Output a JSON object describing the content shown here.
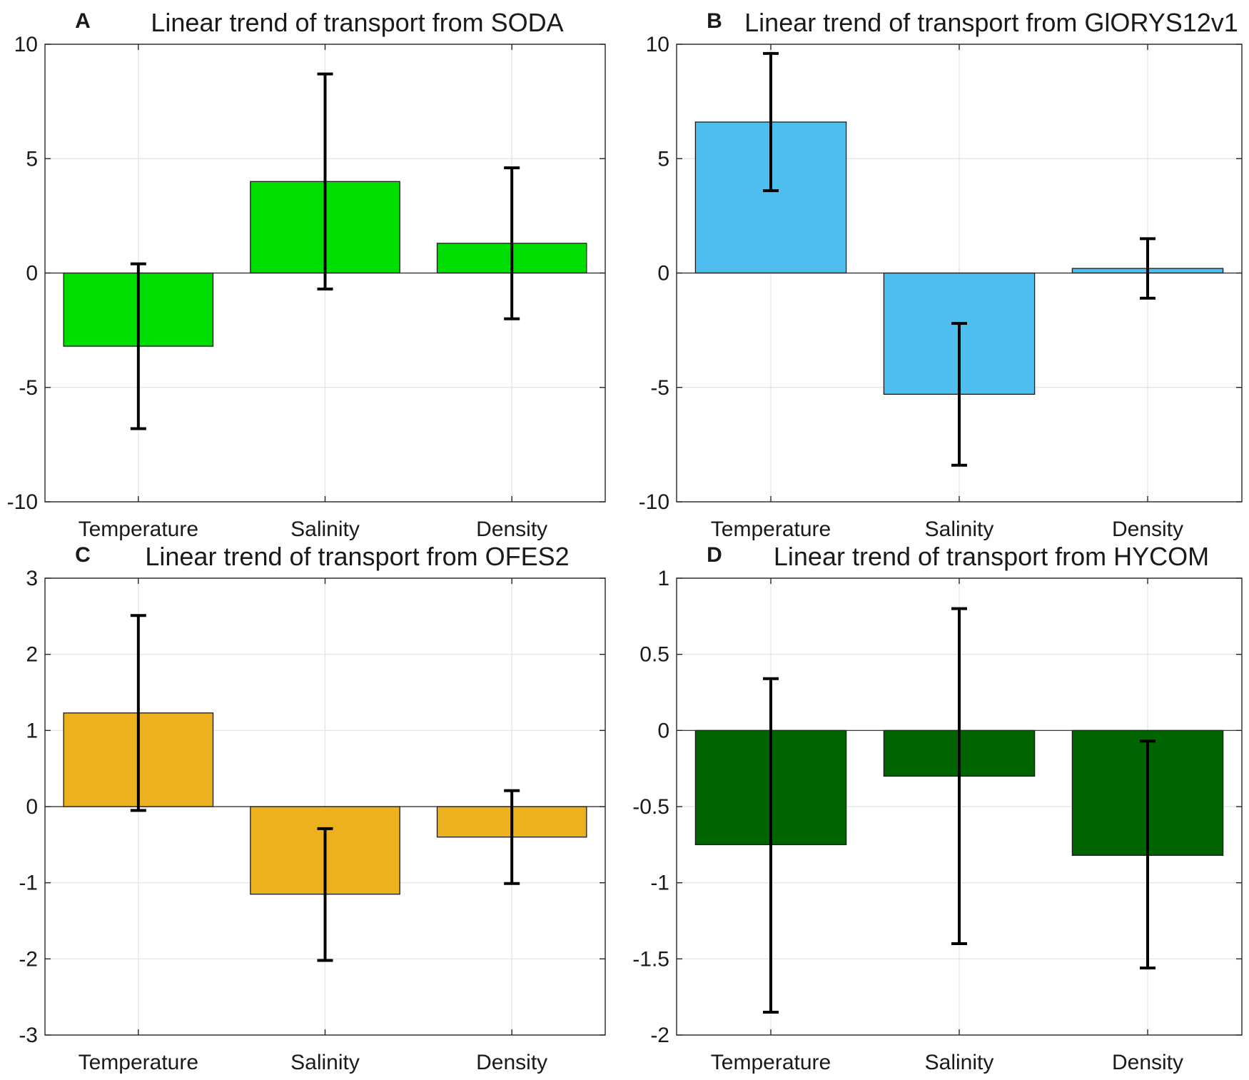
{
  "chart_data": [
    {
      "type": "bar",
      "panel": "A",
      "title": "Linear trend of transport from SODA",
      "categories": [
        "Temperature",
        "Salinity",
        "Density"
      ],
      "values": [
        -3.2,
        4.0,
        1.3
      ],
      "error_low": [
        -6.8,
        -0.7,
        -2.0
      ],
      "error_high": [
        0.4,
        8.7,
        4.6
      ],
      "ylim": [
        -10,
        10
      ],
      "yticks": [
        10,
        5,
        0,
        -5,
        -10
      ],
      "ytick_labels": [
        "10",
        "5",
        "0",
        "-5",
        "-10"
      ],
      "bar_color": "#00dd00",
      "grid": true,
      "xlabel": "",
      "ylabel": ""
    },
    {
      "type": "bar",
      "panel": "B",
      "title": "Linear trend of transport from GlORYS12v1",
      "categories": [
        "Temperature",
        "Salinity",
        "Density"
      ],
      "values": [
        6.6,
        -5.3,
        0.2
      ],
      "error_low": [
        3.6,
        -8.4,
        -1.1
      ],
      "error_high": [
        9.6,
        -2.2,
        1.5
      ],
      "ylim": [
        -10,
        10
      ],
      "yticks": [
        10,
        5,
        0,
        -5,
        -10
      ],
      "ytick_labels": [
        "10",
        "5",
        "0",
        "-5",
        "-10"
      ],
      "bar_color": "#4dbeee",
      "grid": true,
      "xlabel": "",
      "ylabel": ""
    },
    {
      "type": "bar",
      "panel": "C",
      "title": "Linear trend of transport from OFES2",
      "categories": [
        "Temperature",
        "Salinity",
        "Density"
      ],
      "values": [
        1.23,
        -1.15,
        -0.4
      ],
      "error_low": [
        -0.05,
        -2.02,
        -1.01
      ],
      "error_high": [
        2.51,
        -0.29,
        0.21
      ],
      "ylim": [
        -3,
        3
      ],
      "yticks": [
        3,
        2,
        1,
        0,
        -1,
        -2,
        -3
      ],
      "ytick_labels": [
        "3",
        "2",
        "1",
        "0",
        "-1",
        "-2",
        "-3"
      ],
      "bar_color": "#edb120",
      "grid": true,
      "xlabel": "",
      "ylabel": ""
    },
    {
      "type": "bar",
      "panel": "D",
      "title": "Linear trend of transport from HYCOM",
      "categories": [
        "Temperature",
        "Salinity",
        "Density"
      ],
      "values": [
        -0.75,
        -0.3,
        -0.82
      ],
      "error_low": [
        -1.85,
        -1.4,
        -1.56
      ],
      "error_high": [
        0.34,
        0.8,
        -0.07
      ],
      "ylim": [
        -2,
        1
      ],
      "yticks": [
        1,
        0.5,
        0,
        -0.5,
        -1,
        -1.5,
        -2
      ],
      "ytick_labels": [
        "1",
        "0.5",
        "0",
        "-0.5",
        "-1",
        "-1.5",
        "-2"
      ],
      "bar_color": "#006400",
      "grid": true,
      "xlabel": "",
      "ylabel": ""
    }
  ]
}
